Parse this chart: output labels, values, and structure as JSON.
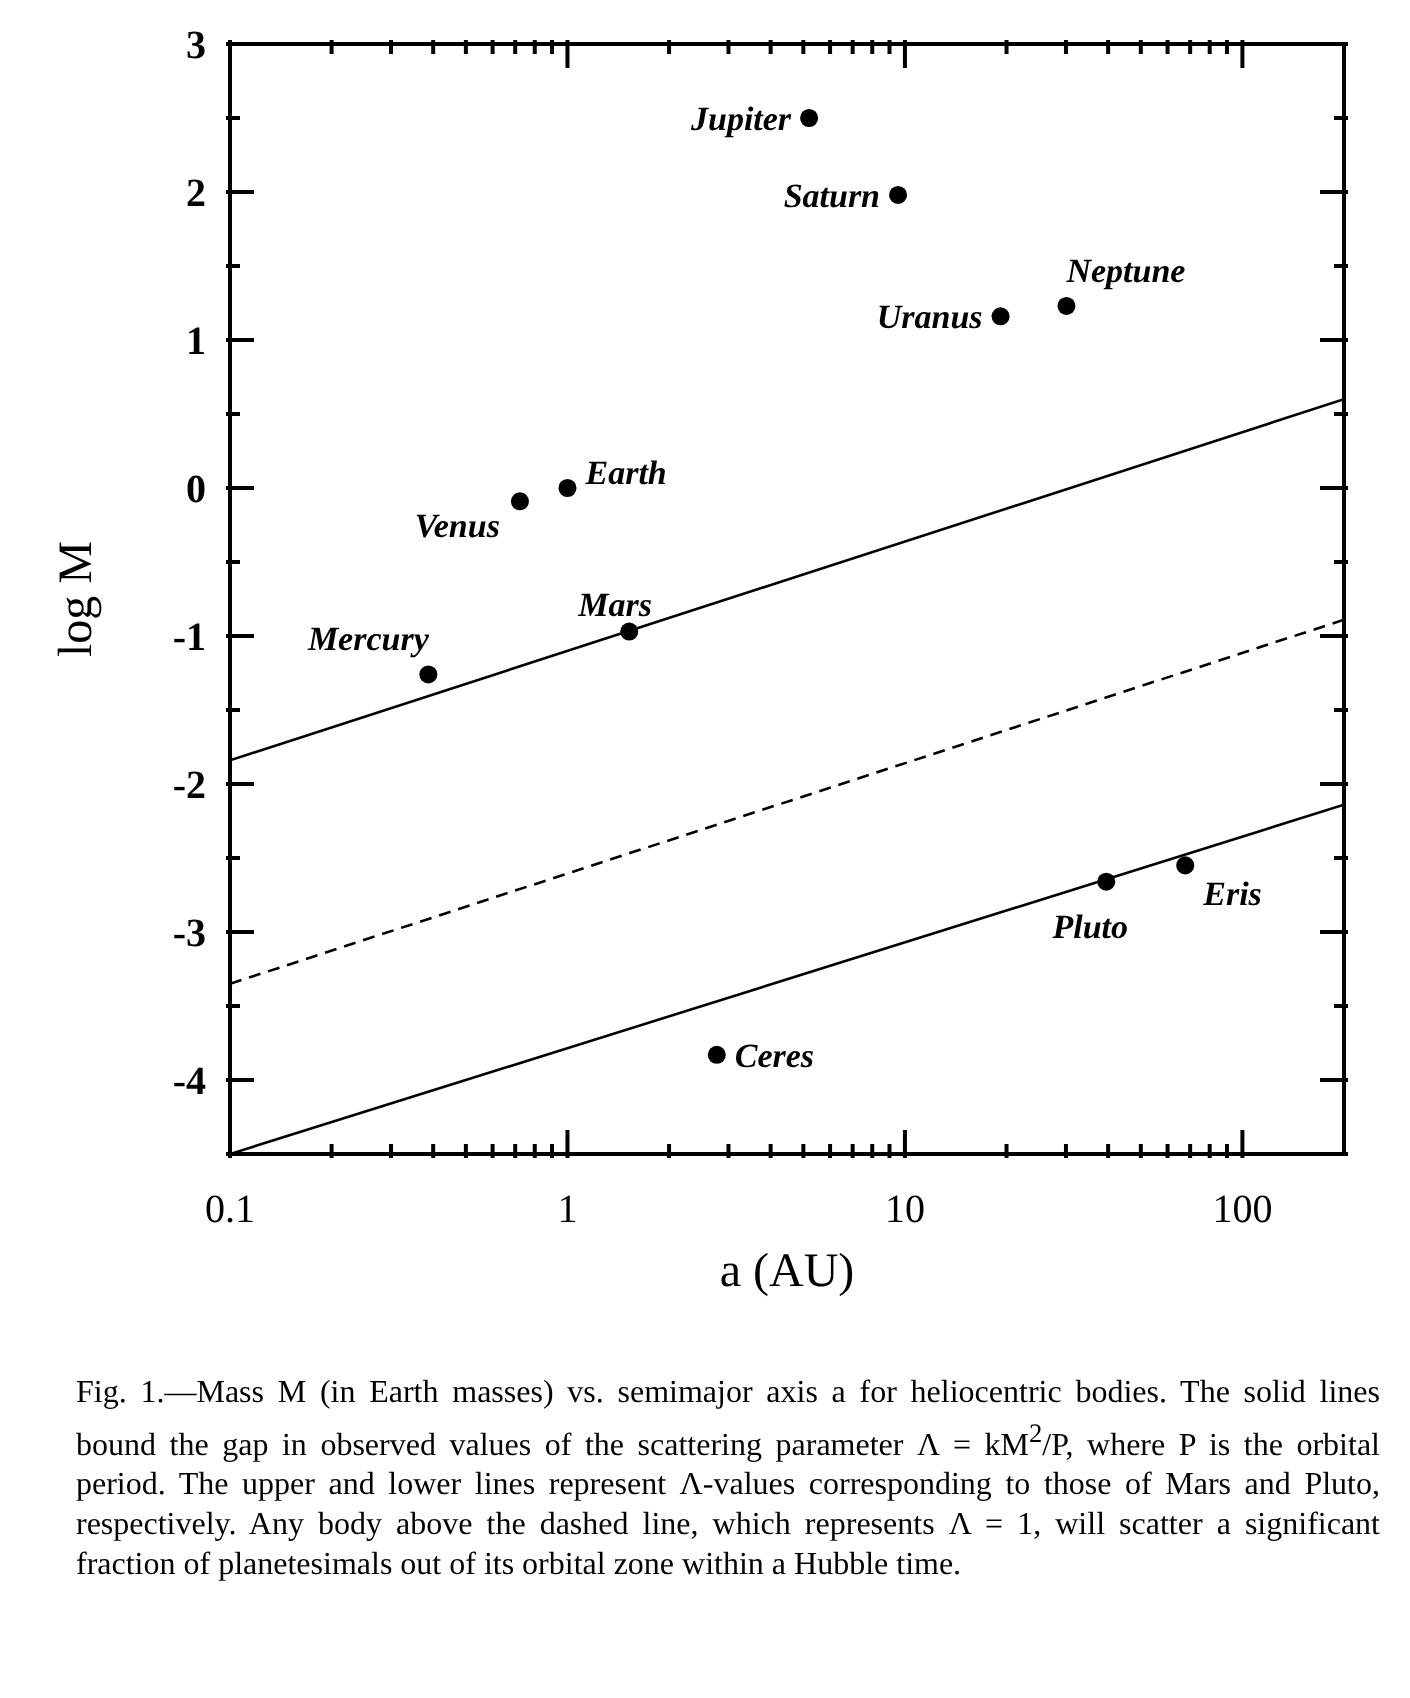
{
  "chart_data": {
    "type": "scatter",
    "xlabel": "a (AU)",
    "ylabel": "log M",
    "log": "x",
    "grid": false,
    "legend": false,
    "xlim": [
      0.1,
      200
    ],
    "ylim": [
      -4.5,
      3
    ],
    "xticks": [
      0.1,
      {
        "value": 0.2,
        "label": null
      },
      {
        "value": 0.3,
        "label": null
      },
      {
        "value": 0.4,
        "label": null
      },
      {
        "value": 0.5,
        "label": null
      },
      {
        "value": 0.6,
        "label": null
      },
      {
        "value": 0.7,
        "label": null
      },
      {
        "value": 0.8,
        "label": null
      },
      {
        "value": 0.9,
        "label": null
      },
      1,
      {
        "value": 2,
        "label": null
      },
      {
        "value": 3,
        "label": null
      },
      {
        "value": 4,
        "label": null
      },
      {
        "value": 5,
        "label": null
      },
      {
        "value": 6,
        "label": null
      },
      {
        "value": 7,
        "label": null
      },
      {
        "value": 8,
        "label": null
      },
      {
        "value": 9,
        "label": null
      },
      10,
      {
        "value": 20,
        "label": null
      },
      {
        "value": 30,
        "label": null
      },
      {
        "value": 40,
        "label": null
      },
      {
        "value": 50,
        "label": null
      },
      {
        "value": 60,
        "label": null
      },
      {
        "value": 70,
        "label": null
      },
      {
        "value": 80,
        "label": null
      },
      {
        "value": 90,
        "label": null
      },
      100
    ],
    "yticks": [
      {
        "value": -4.5,
        "label": null
      },
      -4,
      {
        "value": -3.5,
        "label": null
      },
      -3,
      {
        "value": -2.5,
        "label": null
      },
      -2,
      {
        "value": -1.5,
        "label": null
      },
      -1,
      {
        "value": -0.5,
        "label": null
      },
      0,
      {
        "value": 0.5,
        "label": null
      },
      1,
      {
        "value": 1.5,
        "label": null
      },
      2,
      {
        "value": 2.5,
        "label": null
      },
      3
    ],
    "series": [
      {
        "color": "#000000",
        "marker": "circle",
        "x": [
          0.387,
          0.723,
          1.0,
          1.524,
          5.2,
          9.54,
          19.2,
          30.1,
          2.77,
          39.5,
          67.7
        ],
        "values": [
          -1.26,
          -0.09,
          0.0,
          -0.97,
          2.5,
          1.98,
          1.16,
          1.23,
          -3.83,
          -2.66,
          -2.55
        ]
      },
      {
        "type": "line",
        "color": "#000000",
        "line_style": "solid",
        "marker": "none",
        "x": [
          0.1,
          200
        ],
        "values": [
          -1.84,
          0.6
        ]
      },
      {
        "type": "line",
        "color": "#000000",
        "line_style": "dashed",
        "marker": "none",
        "x": [
          0.1,
          200
        ],
        "values": [
          -3.35,
          -0.89
        ]
      },
      {
        "type": "line",
        "color": "#000000",
        "line_style": "solid",
        "marker": "none",
        "x": [
          0.1,
          200
        ],
        "values": [
          -4.5,
          -2.14
        ]
      }
    ],
    "annotations": [
      {
        "text": "Mercury",
        "x": 0.387,
        "y": -1.26
      },
      {
        "text": "Venus",
        "x": 0.723,
        "y": -0.09
      },
      {
        "text": "Earth",
        "x": 1.0,
        "y": 0.0
      },
      {
        "text": "Mars",
        "x": 1.524,
        "y": -0.97
      },
      {
        "text": "Jupiter",
        "x": 5.2,
        "y": 2.5
      },
      {
        "text": "Saturn",
        "x": 9.54,
        "y": 1.98
      },
      {
        "text": "Uranus",
        "x": 19.2,
        "y": 1.16
      },
      {
        "text": "Neptune",
        "x": 30.1,
        "y": 1.23
      },
      {
        "text": "Ceres",
        "x": 2.77,
        "y": -3.83
      },
      {
        "text": "Pluto",
        "x": 39.5,
        "y": -2.66
      },
      {
        "text": "Eris",
        "x": 67.7,
        "y": -2.55
      },
      "Fig. 1.—Mass M (in Earth masses) vs. semimajor axis a for heliocentric bodies. The solid lines bound the gap in observed values of the scattering parameter Λ = kM$^{2}$/P, where P is the orbital period. The upper and lower lines represent Λ-values corresponding to those of Mars and Pluto, respectively. Any body above the dashed line, which represents Λ = 1, will scatter a significant fraction of planetesimals out of its orbital zone within a Hubble time."
    ]
  }
}
